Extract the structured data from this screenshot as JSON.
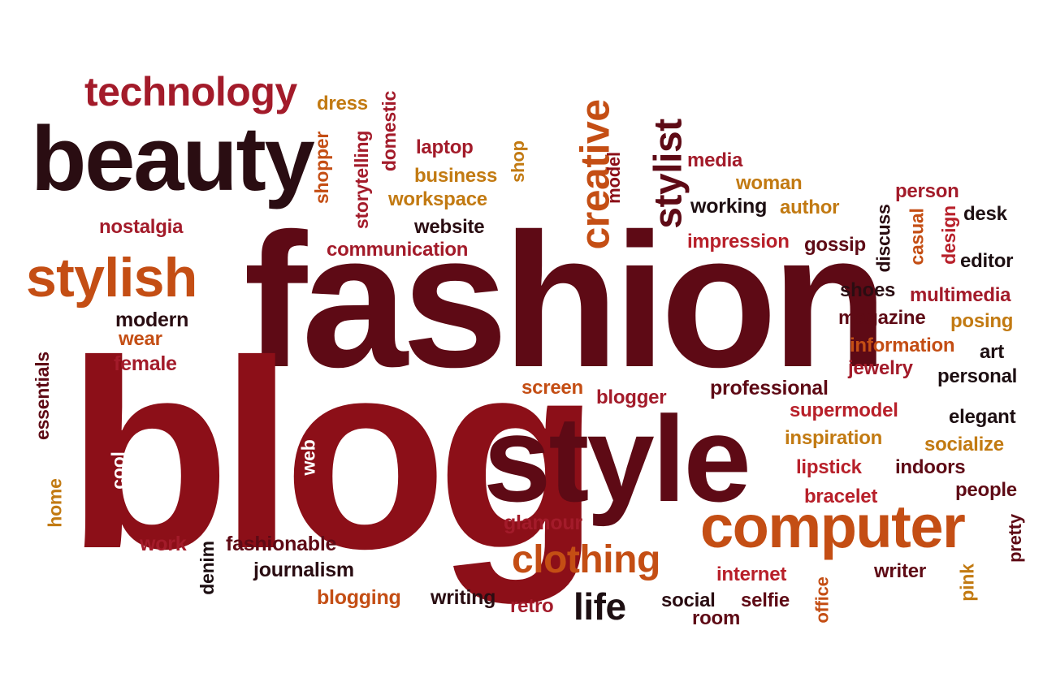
{
  "cloud": {
    "words": {
      "fashion": "fashion",
      "blog": "blog",
      "style": "style",
      "beauty": "beauty",
      "technology": "technology",
      "stylish": "stylish",
      "computer": "computer",
      "clothing": "clothing",
      "life": "life",
      "creative": "creative",
      "stylist": "stylist",
      "dress": "dress",
      "domestic": "domestic",
      "shopper": "shopper",
      "storytelling": "storytelling",
      "laptop": "laptop",
      "business": "business",
      "workspace": "workspace",
      "shop": "shop",
      "website": "website",
      "communication": "communication",
      "model": "model",
      "media": "media",
      "woman": "woman",
      "working": "working",
      "author": "author",
      "impression": "impression",
      "gossip": "gossip",
      "person": "person",
      "desk": "desk",
      "discuss": "discuss",
      "casual": "casual",
      "design": "design",
      "editor": "editor",
      "nostalgia": "nostalgia",
      "modern": "modern",
      "wear": "wear",
      "female": "female",
      "essentials": "essentials",
      "cool": "cool",
      "web": "web",
      "home": "home",
      "work": "work",
      "denim": "denim",
      "fashionable": "fashionable",
      "journalism": "journalism",
      "blogging": "blogging",
      "writing": "writing",
      "retro": "retro",
      "glamour": "glamour",
      "screen": "screen",
      "blogger": "blogger",
      "professional": "professional",
      "shoes": "shoes",
      "multimedia": "multimedia",
      "magazine": "magazine",
      "posing": "posing",
      "information": "information",
      "art": "art",
      "jewelry": "jewelry",
      "personal": "personal",
      "supermodel": "supermodel",
      "elegant": "elegant",
      "inspiration": "inspiration",
      "socialize": "socialize",
      "lipstick": "lipstick",
      "indoors": "indoors",
      "bracelet": "bracelet",
      "people": "people",
      "pretty": "pretty",
      "internet": "internet",
      "writer": "writer",
      "pink": "pink",
      "social": "social",
      "selfie": "selfie",
      "room": "room",
      "office": "office"
    },
    "colors": {
      "dark": "#2a0d12",
      "maroon": "#5e0a15",
      "crimson": "#8c0f18",
      "red": "#b8202a",
      "orange": "#c44e14",
      "gold": "#c27a12",
      "black": "#1d0f12",
      "background": "#ffffff"
    }
  }
}
